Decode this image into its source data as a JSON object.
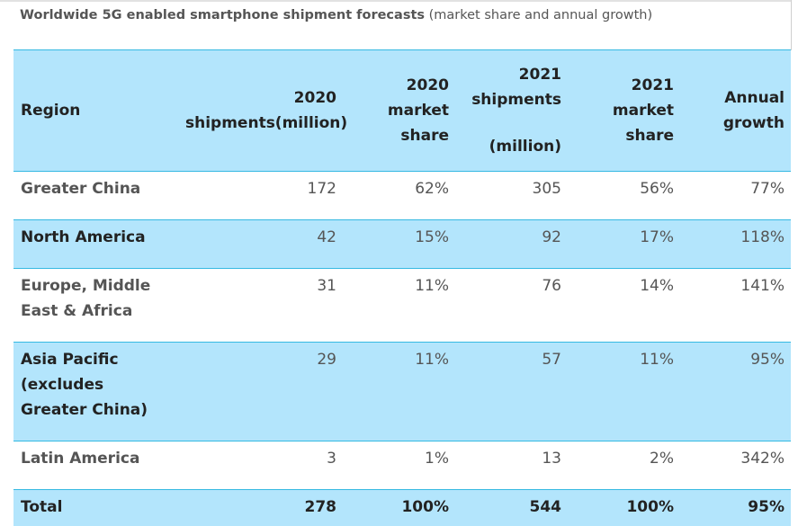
{
  "caption": {
    "bold": "Worldwide 5G enabled smartphone shipment forecasts",
    "paren": " (market share and annual growth)"
  },
  "headers": {
    "region": "Region",
    "s2020_l1": "2020",
    "s2020_l2": "shipments(million)",
    "m2020_l1": "2020",
    "m2020_l2": "market",
    "m2020_l3": "share",
    "s2021_l1": "2021",
    "s2021_l2": "shipments",
    "s2021_l3": "(million)",
    "m2021_l1": "2021",
    "m2021_l2": "market",
    "m2021_l3": "share",
    "growth_l1": "Annual",
    "growth_l2": "growth"
  },
  "rows": [
    {
      "region": "Greater China",
      "s2020": "172",
      "m2020": "62%",
      "s2021": "305",
      "m2021": "56%",
      "growth": "77%"
    },
    {
      "region": "North America",
      "s2020": "42",
      "m2020": "15%",
      "s2021": "92",
      "m2021": "17%",
      "growth": "118%"
    },
    {
      "region_l1": "Europe, Middle",
      "region_l2": "East & Africa",
      "s2020": "31",
      "m2020": "11%",
      "s2021": "76",
      "m2021": "14%",
      "growth": "141%"
    },
    {
      "region_l1": "Asia Pacific",
      "region_l2": "(excludes",
      "region_l3": "Greater China)",
      "s2020": "29",
      "m2020": "11%",
      "s2021": "57",
      "m2021": "11%",
      "growth": "95%"
    },
    {
      "region": "Latin America",
      "s2020": "3",
      "m2020": "1%",
      "s2021": "13",
      "m2021": "2%",
      "growth": "342%"
    }
  ],
  "total": {
    "region": "Total",
    "s2020": "278",
    "m2020": "100%",
    "s2021": "544",
    "m2021": "100%",
    "growth": "95%"
  },
  "colors": {
    "header_bg": "#b3e5fc",
    "rule": "#35b9e2",
    "text": "#555555"
  }
}
